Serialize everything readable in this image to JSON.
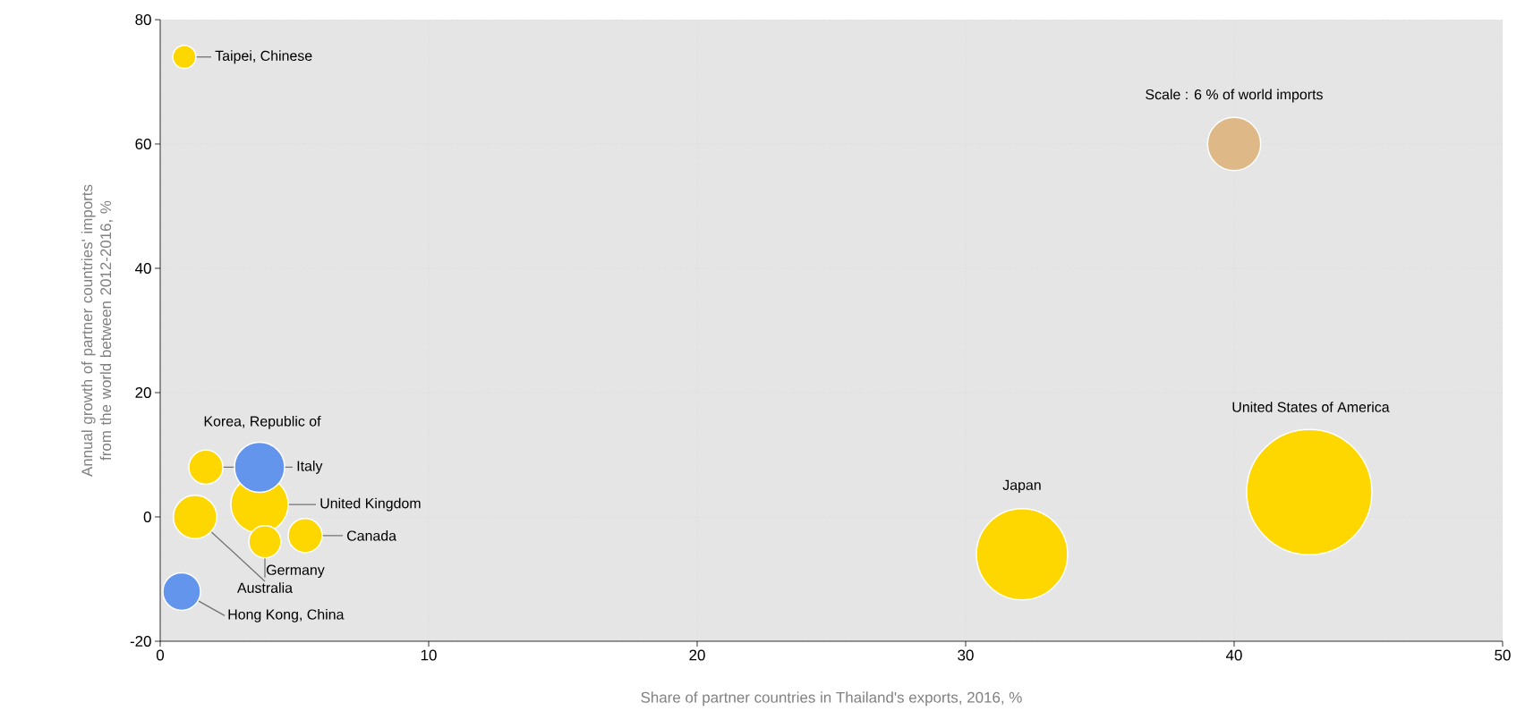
{
  "chart_data": {
    "type": "bubble",
    "xlabel": "Share of partner countries in Thailand's exports, 2016, %",
    "ylabel": "Annual growth of partner countries' imports from the world between 2012-2016, %",
    "xlim": [
      0,
      50
    ],
    "ylim": [
      -20,
      80
    ],
    "xticks": [
      0,
      10,
      20,
      30,
      40,
      50
    ],
    "yticks": [
      -20,
      0,
      20,
      40,
      60,
      80
    ],
    "grid": true,
    "series": [
      {
        "color": "#ffd700",
        "x": [
          0.9,
          1.7,
          3.7,
          5.4,
          3.9,
          1.3,
          32.1,
          42.8
        ],
        "values": [
          74,
          8,
          2,
          -3,
          -4,
          0,
          -6,
          4
        ],
        "sizes": [
          0.034,
          0.074,
          0.21,
          0.074,
          0.066,
          0.12,
          0.53,
          1
        ]
      },
      {
        "color": "#6495ed",
        "x": [
          3.7,
          0.8
        ],
        "values": [
          8,
          -12
        ],
        "sizes": [
          0.16,
          0.09
        ]
      },
      {
        "color": "#deb887",
        "x": [
          40
        ],
        "values": [
          60
        ],
        "sizes": [
          0.18
        ]
      }
    ],
    "annotations": [
      {
        "text": "Taipei, Chinese",
        "x": 0.9,
        "y": 74
      },
      {
        "text": "Korea, Republic of",
        "x": 3.7,
        "y": 8
      },
      {
        "text": "Italy",
        "x": 1.7,
        "y": 8
      },
      {
        "text": "United Kingdom",
        "x": 3.7,
        "y": 2
      },
      {
        "text": "Canada",
        "x": 5.4,
        "y": -3
      },
      {
        "text": "Germany",
        "x": 3.9,
        "y": -4
      },
      {
        "text": "Australia",
        "x": 1.3,
        "y": 0
      },
      {
        "text": "Hong Kong, China",
        "x": 0.8,
        "y": -12
      },
      "Japan",
      "United States of America",
      {
        "text": "Scale : 6 % of world imports",
        "x": 40,
        "y": 60
      }
    ]
  }
}
